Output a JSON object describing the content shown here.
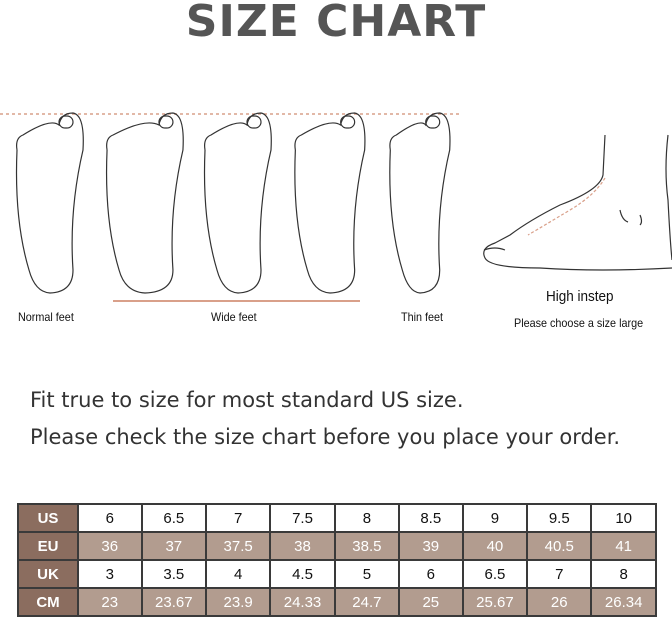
{
  "title": "SIZE CHART",
  "foot_labels": {
    "normal": "Normal feet",
    "wide": "Wide feet",
    "thin": "Thin feet",
    "high_instep": "High instep",
    "high_instep_note": "Please choose a size large"
  },
  "notes": [
    "Fit true to size for most standard US size.",
    "Please check the size chart before you place your order."
  ],
  "colors": {
    "header": "#8b6d5f",
    "alt_row": "#b29c8f",
    "guide_line": "#d9a08a"
  },
  "size_table": [
    {
      "label": "US",
      "values": [
        "6",
        "6.5",
        "7",
        "7.5",
        "8",
        "8.5",
        "9",
        "9.5",
        "10"
      ]
    },
    {
      "label": "EU",
      "values": [
        "36",
        "37",
        "37.5",
        "38",
        "38.5",
        "39",
        "40",
        "40.5",
        "41"
      ]
    },
    {
      "label": "UK",
      "values": [
        "3",
        "3.5",
        "4",
        "4.5",
        "5",
        "6",
        "6.5",
        "7",
        "8"
      ]
    },
    {
      "label": "CM",
      "values": [
        "23",
        "23.67",
        "23.9",
        "24.33",
        "24.7",
        "25",
        "25.67",
        "26",
        "26.34"
      ]
    }
  ]
}
